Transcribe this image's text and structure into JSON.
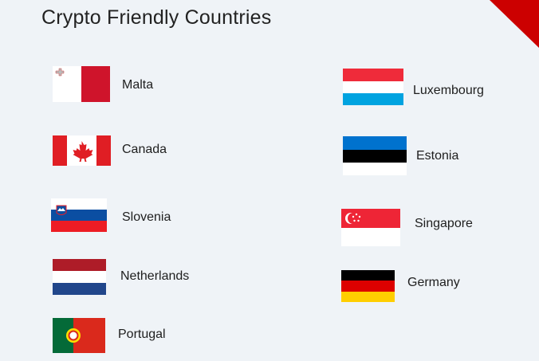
{
  "title": "Crypto Friendly Countries",
  "accent_color": "#cc0000",
  "countries": [
    {
      "name": "Malta",
      "flag": "malta-flag"
    },
    {
      "name": "Canada",
      "flag": "canada-flag"
    },
    {
      "name": "Slovenia",
      "flag": "slovenia-flag"
    },
    {
      "name": "Netherlands",
      "flag": "netherlands-flag"
    },
    {
      "name": "Portugal",
      "flag": "portugal-flag"
    },
    {
      "name": "Luxembourg",
      "flag": "luxembourg-flag"
    },
    {
      "name": "Estonia",
      "flag": "estonia-flag"
    },
    {
      "name": "Singapore",
      "flag": "singapore-flag"
    },
    {
      "name": "Germany",
      "flag": "germany-flag"
    }
  ]
}
